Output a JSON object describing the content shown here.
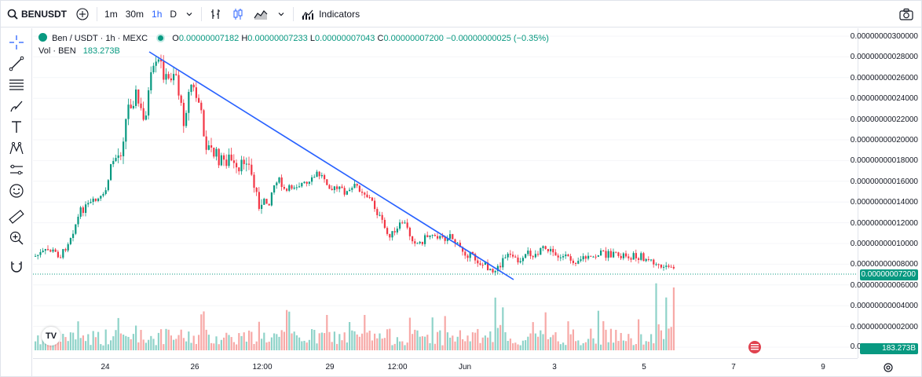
{
  "topbar": {
    "symbol": "BENUSDT",
    "intervals": [
      "1m",
      "30m",
      "1h",
      "D"
    ],
    "active_interval": "1h",
    "indicators_label": "Indicators"
  },
  "legend": {
    "title": "Ben / USDT · 1h · MEXC",
    "open_label": "O",
    "open": "0.00000007182",
    "high_label": "H",
    "high": "0.00000007233",
    "low_label": "L",
    "low": "0.00000007043",
    "close_label": "C",
    "close": "0.00000007200",
    "change": "−0.00000000025 (−0.35%)",
    "vol_label": "Vol · BEN",
    "vol_value": "183.273B"
  },
  "price_axis": {
    "labels": [
      "0.00000000300000",
      "0.00000000028000",
      "0.00000000026000",
      "0.00000000024000",
      "0.00000000022000",
      "0.00000000020000",
      "0.00000000018000",
      "0.00000000016000",
      "0.00000000014000",
      "0.00000000012000",
      "0.00000000010000",
      "0.00000000008000",
      "0.00000000006000",
      "0.00000000004000",
      "0.00000000002000",
      "0.00000000000000"
    ],
    "current_price": "0.00000007200",
    "current_volume": "183.273B"
  },
  "time_axis": {
    "labels": [
      "24",
      "26",
      "12:00",
      "29",
      "12:00",
      "Jun",
      "3",
      "5",
      "7",
      "9"
    ]
  },
  "colors": {
    "up": "#089981",
    "down": "#f23645",
    "up_volume": "#8fd3c9",
    "down_volume": "#f7a9a7",
    "trendline": "#2962ff",
    "accent": "#2962ff"
  },
  "chart_data": {
    "type": "candlestick",
    "price_scale": {
      "min": 0,
      "max": 3e-09
    },
    "last_price": 7.2e-08,
    "trendline": {
      "description_hidden": true
    }
  }
}
